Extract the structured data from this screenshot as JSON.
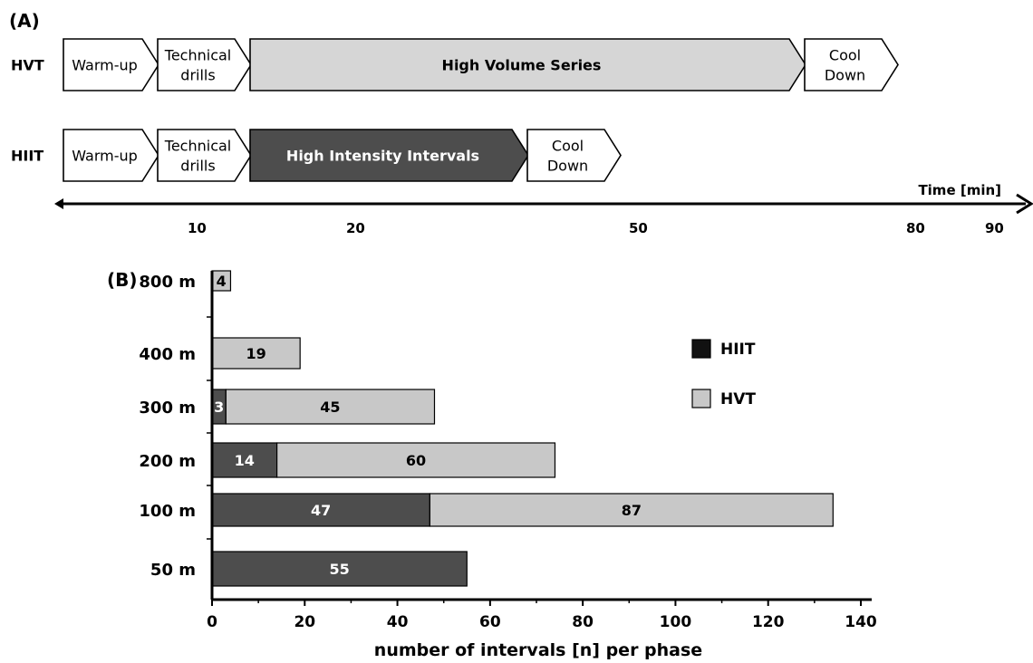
{
  "panel_a": {
    "label": "(A)",
    "rows": [
      {
        "name": "HVT",
        "phases": [
          {
            "label": "Warm-up",
            "start": 0,
            "end": 10,
            "shade": "white"
          },
          {
            "label": "Technical drills",
            "lines": [
              "Technical",
              "drills"
            ],
            "start": 10,
            "end": 20,
            "shade": "white"
          },
          {
            "label": "High Volume Series",
            "start": 20,
            "end": 80,
            "shade": "light"
          },
          {
            "label": "Cool Down",
            "lines": [
              "Cool",
              "Down"
            ],
            "start": 80,
            "end": 90,
            "shade": "white"
          }
        ]
      },
      {
        "name": "HIIT",
        "phases": [
          {
            "label": "Warm-up",
            "start": 0,
            "end": 10,
            "shade": "white"
          },
          {
            "label": "Technical drills",
            "lines": [
              "Technical",
              "drills"
            ],
            "start": 10,
            "end": 20,
            "shade": "white"
          },
          {
            "label": "High Intensity Intervals",
            "start": 20,
            "end": 50,
            "shade": "dark"
          },
          {
            "label": "Cool Down",
            "lines": [
              "Cool",
              "Down"
            ],
            "start": 50,
            "end": 60,
            "shade": "white"
          }
        ]
      }
    ],
    "time_axis": {
      "label": "Time [min]",
      "ticks": [
        "10",
        "20",
        "50",
        "80",
        "90"
      ]
    }
  },
  "chart_data": {
    "type": "bar",
    "orientation": "horizontal",
    "stacked": true,
    "panel_label": "(B)",
    "categories": [
      "800 m",
      "400 m",
      "300 m",
      "200 m",
      "100 m",
      "50 m"
    ],
    "series": [
      {
        "name": "HIIT",
        "color": "#4d4d4d",
        "values": [
          0,
          0,
          3,
          14,
          47,
          55
        ]
      },
      {
        "name": "HVT",
        "color": "#c8c8c8",
        "values": [
          4,
          19,
          45,
          60,
          87,
          0
        ]
      }
    ],
    "xlabel": "number of intervals [n] per phase",
    "xlim": [
      0,
      140
    ],
    "xticks": [
      0,
      20,
      40,
      60,
      80,
      100,
      120,
      140
    ],
    "legend": "right",
    "grid": false
  },
  "colors": {
    "dark": "#4d4d4d",
    "light": "#d6d6d6",
    "white": "#ffffff",
    "hiit_legend": "#111111",
    "hvt_legend": "#c8c8c8"
  }
}
